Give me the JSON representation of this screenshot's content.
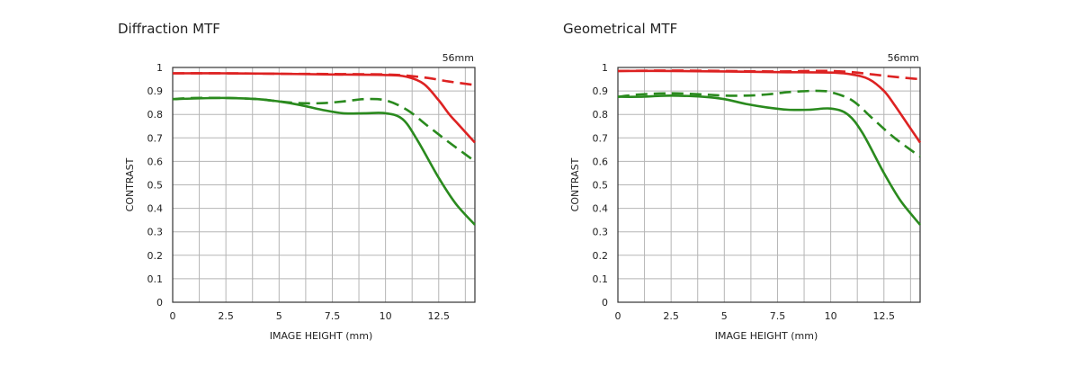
{
  "chart_data": [
    {
      "type": "line",
      "title": "Diffraction MTF",
      "annotation": "56mm",
      "xlabel": "IMAGE HEIGHT (mm)",
      "ylabel": "CONTRAST",
      "xlim": [
        0,
        14.2
      ],
      "ylim": [
        0,
        1
      ],
      "xticks": [
        0,
        2.5,
        5,
        7.5,
        10,
        12.5
      ],
      "yticks": [
        0,
        0.1,
        0.2,
        0.3,
        0.4,
        0.5,
        0.6,
        0.7,
        0.8,
        0.9,
        1
      ],
      "grid": true,
      "series": [
        {
          "color": "#dd2222",
          "dash": false,
          "x": [
            0,
            2.5,
            5,
            7.5,
            10,
            11,
            11.8,
            12.5,
            13,
            13.5,
            14.2
          ],
          "y": [
            0.975,
            0.975,
            0.973,
            0.97,
            0.968,
            0.96,
            0.93,
            0.86,
            0.8,
            0.75,
            0.68
          ]
        },
        {
          "color": "#dd2222",
          "dash": true,
          "x": [
            0,
            2.5,
            5,
            7.5,
            10,
            11,
            12,
            13,
            14.2
          ],
          "y": [
            0.975,
            0.975,
            0.973,
            0.972,
            0.97,
            0.965,
            0.955,
            0.94,
            0.925
          ]
        },
        {
          "color": "#2a8a1e",
          "dash": false,
          "x": [
            0,
            1,
            2.5,
            4,
            5,
            6,
            7,
            8,
            9,
            10,
            10.8,
            11.5,
            12.5,
            13.3,
            14.2
          ],
          "y": [
            0.865,
            0.868,
            0.87,
            0.865,
            0.855,
            0.84,
            0.82,
            0.805,
            0.805,
            0.805,
            0.78,
            0.69,
            0.53,
            0.42,
            0.33
          ]
        },
        {
          "color": "#2a8a1e",
          "dash": true,
          "x": [
            0,
            1,
            2.5,
            4,
            5,
            6,
            7,
            8,
            9,
            10,
            11,
            12,
            13,
            14.2
          ],
          "y": [
            0.865,
            0.87,
            0.87,
            0.865,
            0.855,
            0.848,
            0.848,
            0.855,
            0.865,
            0.86,
            0.82,
            0.75,
            0.68,
            0.6
          ]
        }
      ]
    },
    {
      "type": "line",
      "title": "Geometrical MTF",
      "annotation": "56mm",
      "xlabel": "IMAGE HEIGHT (mm)",
      "ylabel": "CONTRAST",
      "xlim": [
        0,
        14.2
      ],
      "ylim": [
        0,
        1
      ],
      "xticks": [
        0,
        2.5,
        5,
        7.5,
        10,
        12.5
      ],
      "yticks": [
        0,
        0.1,
        0.2,
        0.3,
        0.4,
        0.5,
        0.6,
        0.7,
        0.8,
        0.9,
        1
      ],
      "grid": true,
      "series": [
        {
          "color": "#dd2222",
          "dash": false,
          "x": [
            0,
            2.5,
            5,
            7.5,
            10,
            11,
            11.8,
            12.5,
            13,
            13.6,
            14.2
          ],
          "y": [
            0.985,
            0.985,
            0.983,
            0.98,
            0.978,
            0.97,
            0.95,
            0.9,
            0.84,
            0.76,
            0.68
          ]
        },
        {
          "color": "#dd2222",
          "dash": true,
          "x": [
            0,
            2.5,
            5,
            7.5,
            9,
            10,
            11,
            12,
            13,
            14.2
          ],
          "y": [
            0.985,
            0.987,
            0.985,
            0.983,
            0.985,
            0.985,
            0.98,
            0.97,
            0.96,
            0.95
          ]
        },
        {
          "color": "#2a8a1e",
          "dash": false,
          "x": [
            0,
            1,
            2.5,
            4,
            5,
            6,
            7,
            8,
            9,
            10,
            10.8,
            11.5,
            12.5,
            13.3,
            14.2
          ],
          "y": [
            0.875,
            0.875,
            0.88,
            0.875,
            0.865,
            0.845,
            0.83,
            0.82,
            0.82,
            0.825,
            0.8,
            0.72,
            0.55,
            0.43,
            0.33
          ]
        },
        {
          "color": "#2a8a1e",
          "dash": true,
          "x": [
            0,
            1,
            2.5,
            4,
            5,
            6,
            7,
            8,
            9,
            9.5,
            10,
            11,
            12,
            13,
            14.2
          ],
          "y": [
            0.875,
            0.885,
            0.89,
            0.885,
            0.88,
            0.88,
            0.885,
            0.895,
            0.9,
            0.9,
            0.895,
            0.86,
            0.78,
            0.7,
            0.62
          ]
        }
      ]
    }
  ]
}
